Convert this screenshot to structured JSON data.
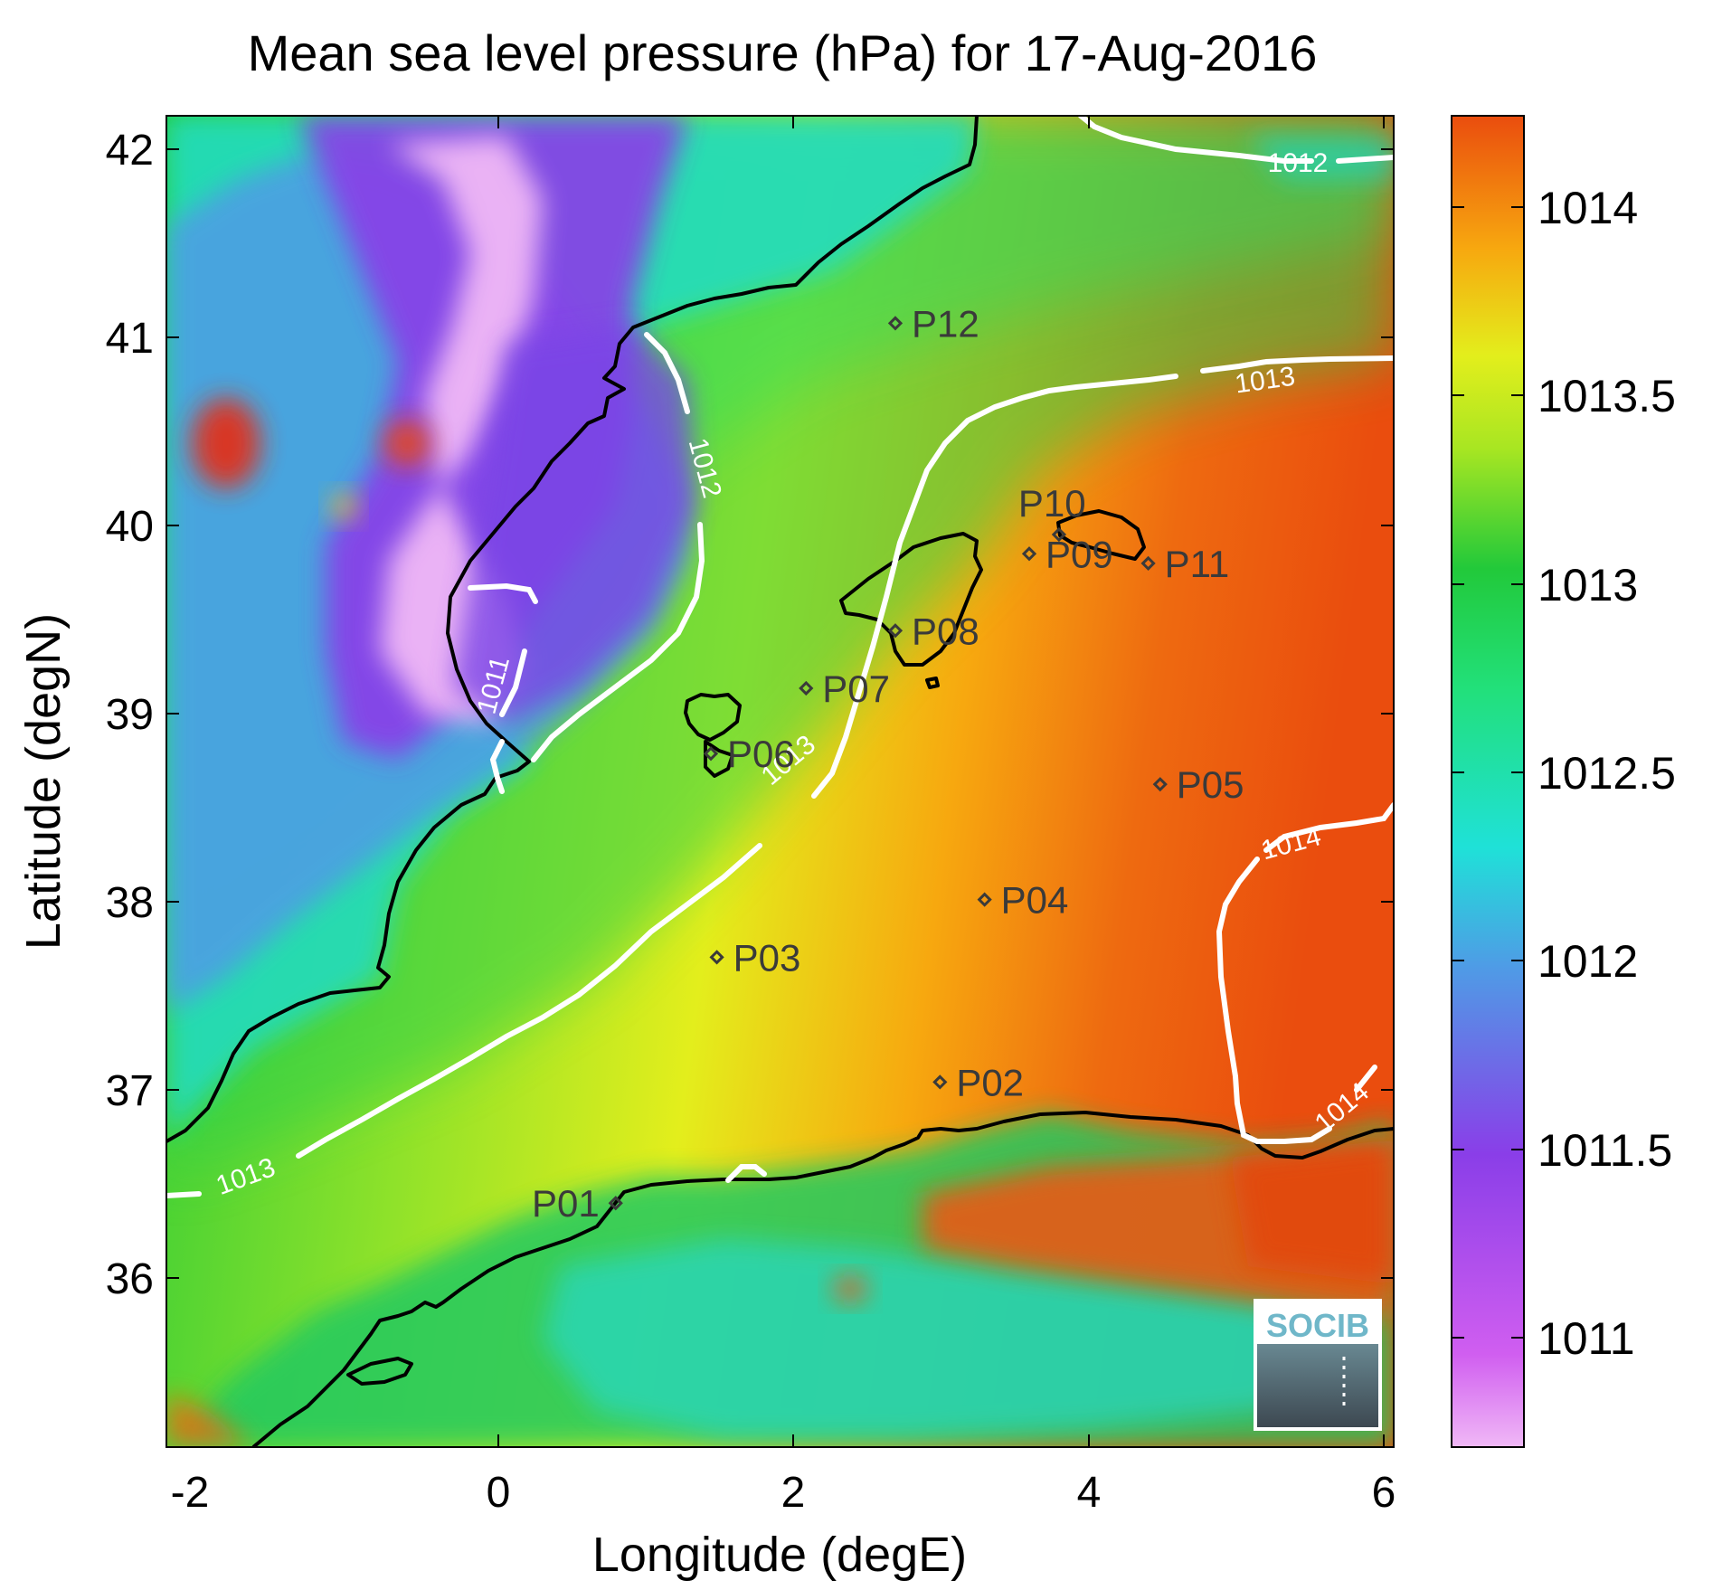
{
  "title": "Mean sea level pressure (hPa) for 17-Aug-2016",
  "xlabel": "Longitude (degE)",
  "ylabel": "Latitude (degN)",
  "x_ticks": [
    "-2",
    "0",
    "2",
    "4",
    "6"
  ],
  "y_ticks": [
    "42",
    "41",
    "40",
    "39",
    "38",
    "37",
    "36"
  ],
  "colorbar": {
    "ticks": [
      "1014",
      "1013.5",
      "1013",
      "1012.5",
      "1012",
      "1011.5",
      "1011"
    ],
    "range": [
      1010.72,
      1014.22
    ]
  },
  "contour_labels": {
    "c1011": "1011",
    "c1012a": "1012",
    "c1012b": "1012",
    "c1013a": "1013",
    "c1013b": "1013",
    "c1013c": "1013",
    "c1014a": "1014",
    "c1014b": "1014"
  },
  "logo": "SOCIB",
  "colors": {
    "low": "#f0b8f6",
    "purple": "#8a3ee8",
    "blue": "#4f9be6",
    "cyan": "#1fe1d8",
    "green": "#22c93a",
    "yellow": "#e3ee1c",
    "orange": "#f7a80f",
    "high": "#ea4d0e"
  },
  "chart_data": {
    "type": "heatmap",
    "title": "Mean sea level pressure (hPa) for 17-Aug-2016",
    "xlabel": "Longitude (degE)",
    "ylabel": "Latitude (degN)",
    "xlim": [
      -2.2,
      6.05
    ],
    "ylim": [
      35.25,
      42.18
    ],
    "units": "hPa",
    "color_range": [
      1010.72,
      1014.22
    ],
    "contour_levels": [
      1011,
      1012,
      1013,
      1014
    ],
    "points": [
      {
        "name": "P01",
        "lon": 0.82,
        "lat": 36.52
      },
      {
        "name": "P02",
        "lon": 3.0,
        "lat": 37.15
      },
      {
        "name": "P03",
        "lon": 1.5,
        "lat": 37.8
      },
      {
        "name": "P04",
        "lon": 3.3,
        "lat": 38.1
      },
      {
        "name": "P05",
        "lon": 4.48,
        "lat": 38.7
      },
      {
        "name": "P06",
        "lon": 1.46,
        "lat": 38.86
      },
      {
        "name": "P07",
        "lon": 2.1,
        "lat": 39.2
      },
      {
        "name": "P08",
        "lon": 2.7,
        "lat": 39.5
      },
      {
        "name": "P09",
        "lon": 3.6,
        "lat": 39.9
      },
      {
        "name": "P10",
        "lon": 3.8,
        "lat": 40.0
      },
      {
        "name": "P11",
        "lon": 4.4,
        "lat": 39.85
      },
      {
        "name": "P12",
        "lon": 2.7,
        "lat": 41.1
      }
    ]
  }
}
